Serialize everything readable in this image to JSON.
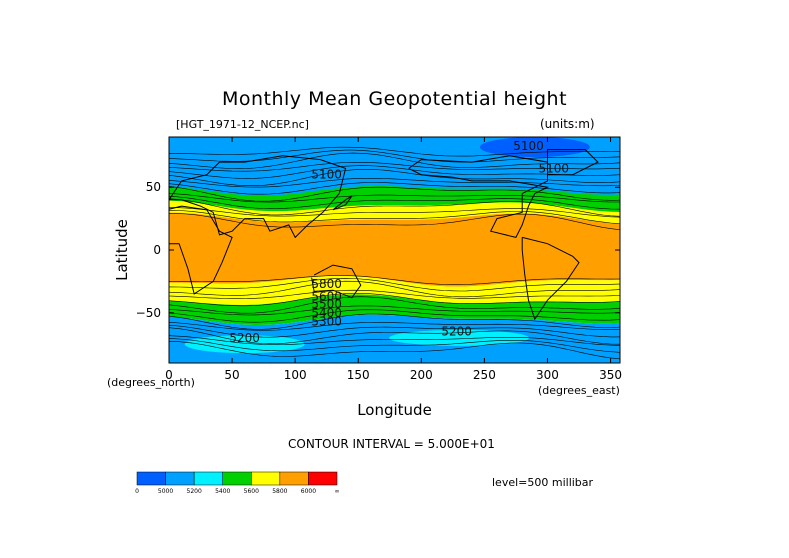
{
  "title": "Monthly Mean Geopotential height",
  "subtitle_left": "[HGT_1971-12_NCEP.nc]",
  "subtitle_right": "(units:m)",
  "chart_data": {
    "type": "heatmap",
    "title": "Monthly Mean Geopotential height",
    "xlabel": "Longitude",
    "ylabel": "Latitude",
    "x_unit": "(degrees_east)",
    "y_unit": "(degrees_north)",
    "xlim": [
      0,
      357.5
    ],
    "ylim": [
      -90,
      90
    ],
    "x_ticks": [
      0,
      50,
      100,
      150,
      200,
      250,
      300,
      350
    ],
    "y_ticks": [
      -50,
      0,
      50
    ],
    "contour_interval_text": "CONTOUR INTERVAL = 5.000E+01",
    "level_text": "level=500 millibar",
    "contour_labels": [
      {
        "text": "5100",
        "lon": 125,
        "lat": 60
      },
      {
        "text": "5100",
        "lon": 285,
        "lat": 83
      },
      {
        "text": "5100",
        "lon": 305,
        "lat": 65
      },
      {
        "text": "5800",
        "lon": 125,
        "lat": -27
      },
      {
        "text": "5600",
        "lon": 125,
        "lat": -37
      },
      {
        "text": "5500",
        "lon": 125,
        "lat": -43
      },
      {
        "text": "5400",
        "lon": 125,
        "lat": -50
      },
      {
        "text": "5300",
        "lon": 125,
        "lat": -57
      },
      {
        "text": "5200",
        "lon": 60,
        "lat": -70
      },
      {
        "text": "5200",
        "lon": 228,
        "lat": -65
      }
    ],
    "colorbar": {
      "colors": [
        "#0060ff",
        "#00a0ff",
        "#00f0ff",
        "#00d000",
        "#ffff00",
        "#ffa000",
        "#ff0000"
      ],
      "labels": [
        "0",
        "5000",
        "5200",
        "5400",
        "5600",
        "5800",
        "6000",
        "∞"
      ]
    },
    "zones": [
      {
        "lat_min": 45,
        "lat_max": 90,
        "value_range": [
          5000,
          5400
        ],
        "color": "#00a0ff"
      },
      {
        "lat_min": 30,
        "lat_max": 48,
        "value_range": [
          5400,
          5600
        ],
        "color": "#00d000"
      },
      {
        "lat_min": 20,
        "lat_max": 35,
        "value_range": [
          5600,
          5800
        ],
        "color": "#ffff00"
      },
      {
        "lat_min": -25,
        "lat_max": 25,
        "value_range": [
          5800,
          6000
        ],
        "color": "#ffa000"
      },
      {
        "lat_min": -45,
        "lat_max": -25,
        "value_range": [
          5600,
          5800
        ],
        "color": "#ffff00"
      },
      {
        "lat_min": -55,
        "lat_max": -40,
        "value_range": [
          5400,
          5600
        ],
        "color": "#00d000"
      },
      {
        "lat_min": -90,
        "lat_max": -55,
        "value_range": [
          5000,
          5400
        ],
        "color": "#00a0ff"
      }
    ]
  }
}
